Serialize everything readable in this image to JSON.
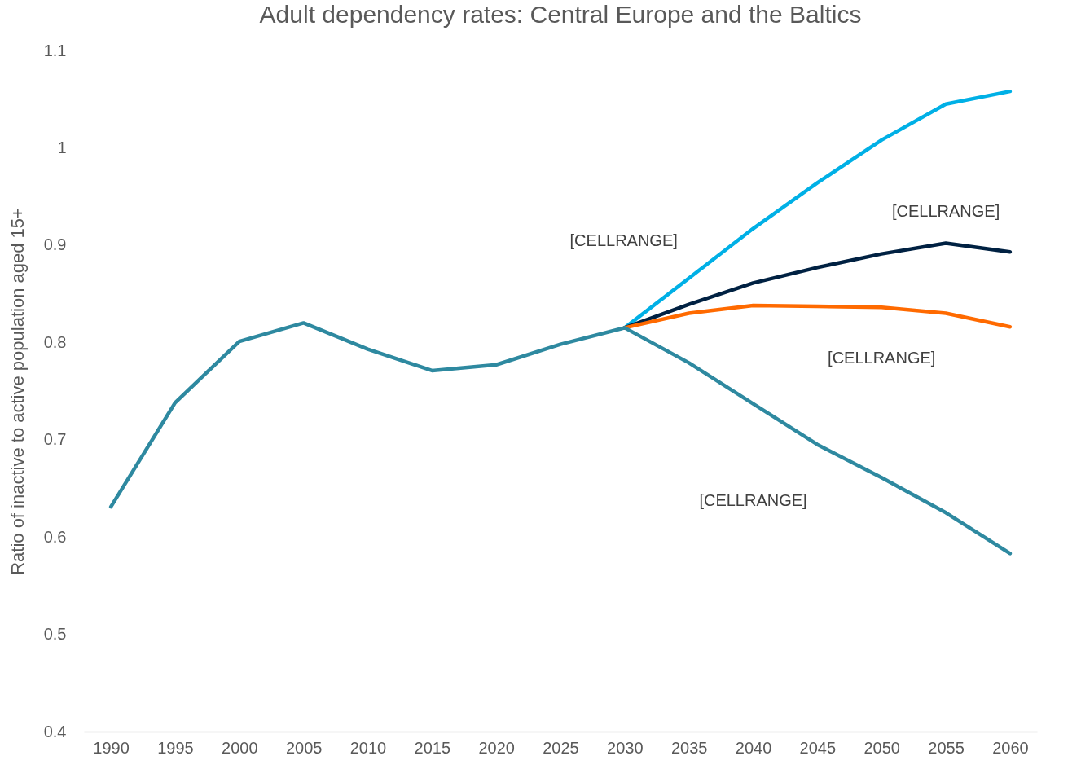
{
  "chart_data": {
    "type": "line",
    "title": "Adult dependency rates: Central Europe and the Baltics",
    "ylabel": "Ratio of inactive to active population aged 15+",
    "categories": [
      "1990",
      "1995",
      "2000",
      "2005",
      "2010",
      "2015",
      "2020",
      "2025",
      "2030",
      "2035",
      "2040",
      "2045",
      "2050",
      "2055",
      "2060"
    ],
    "series": [
      {
        "name": "[CELLRANGE]",
        "color": "#00b0e6",
        "values": [
          null,
          null,
          null,
          null,
          null,
          null,
          null,
          null,
          0.815,
          0.866,
          0.917,
          0.964,
          1.008,
          1.045,
          1.058
        ]
      },
      {
        "name": "[CELLRANGE]",
        "color": "#002142",
        "values": [
          null,
          null,
          null,
          null,
          null,
          null,
          null,
          null,
          0.815,
          0.839,
          0.861,
          0.877,
          0.891,
          0.902,
          0.893
        ]
      },
      {
        "name": "[CELLRANGE]",
        "color": "#ff6a00",
        "values": [
          null,
          null,
          null,
          null,
          null,
          null,
          null,
          null,
          0.815,
          0.83,
          0.838,
          0.837,
          0.836,
          0.83,
          0.816
        ]
      },
      {
        "name": "[CELLRANGE]",
        "color": "#2e89a0",
        "values": [
          0.631,
          0.738,
          0.801,
          0.82,
          0.793,
          0.771,
          0.777,
          0.798,
          0.815,
          0.779,
          0.737,
          0.695,
          0.661,
          0.625,
          0.583
        ]
      }
    ],
    "ylim": [
      0.4,
      1.1
    ],
    "yticks": [
      0.4,
      0.5,
      0.6,
      0.7,
      0.8,
      0.9,
      1,
      1.1
    ],
    "grid": false,
    "legend": false
  }
}
